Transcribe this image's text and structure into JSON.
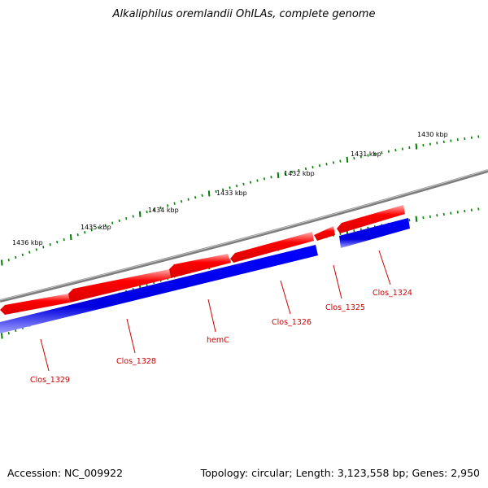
{
  "title": "Alkaliphilus oremlandii OhILAs, complete genome",
  "footer": {
    "accession": "Accession: NC_009922",
    "summary": "Topology: circular; Length: 3,123,558 bp; Genes: 2,950"
  },
  "colors": {
    "backbone": "#808080",
    "forward_gene": "#ff0000",
    "reverse_gene": "#0000ff",
    "ticks": "#008000",
    "label": "#cc0000"
  },
  "scale_labels": [
    "1430 kbp",
    "1431 kbp",
    "1432 kbp",
    "1433 kbp",
    "1434 kbp",
    "1435 kbp",
    "1436 kbp"
  ],
  "gene_labels": [
    "Clos_1324",
    "Clos_1325",
    "Clos_1326",
    "hemC",
    "Clos_1328",
    "Clos_1329"
  ]
}
